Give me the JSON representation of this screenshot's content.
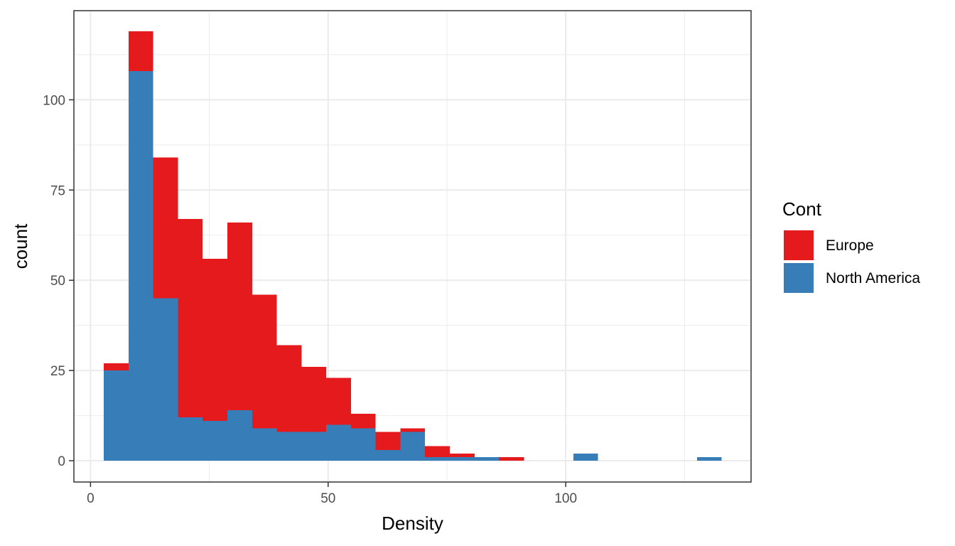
{
  "chart_data": {
    "type": "bar",
    "subtype": "stacked-histogram",
    "title": "",
    "xlabel": "Density",
    "ylabel": "count",
    "xlim": [
      -3.5,
      139
    ],
    "ylim": [
      -5.9,
      124.7
    ],
    "x_ticks": [
      0,
      50,
      100
    ],
    "y_ticks": [
      0,
      25,
      50,
      75,
      100
    ],
    "grid": true,
    "legend_position": "right",
    "legend": {
      "title": "Cont",
      "entries": [
        {
          "name": "Europe",
          "color": "#E41A1C"
        },
        {
          "name": "North America",
          "color": "#377EB8"
        }
      ]
    },
    "bins": [
      {
        "x0": 2.8,
        "x1": 8.0
      },
      {
        "x0": 8.0,
        "x1": 13.2
      },
      {
        "x0": 13.2,
        "x1": 18.4
      },
      {
        "x0": 18.4,
        "x1": 23.6
      },
      {
        "x0": 23.6,
        "x1": 28.8
      },
      {
        "x0": 28.8,
        "x1": 34.0
      },
      {
        "x0": 34.0,
        "x1": 39.2
      },
      {
        "x0": 39.2,
        "x1": 44.4
      },
      {
        "x0": 44.4,
        "x1": 49.6
      },
      {
        "x0": 49.6,
        "x1": 54.8
      },
      {
        "x0": 54.8,
        "x1": 60.0
      },
      {
        "x0": 60.0,
        "x1": 65.2
      },
      {
        "x0": 65.2,
        "x1": 70.4
      },
      {
        "x0": 70.4,
        "x1": 75.6
      },
      {
        "x0": 75.6,
        "x1": 80.8
      },
      {
        "x0": 80.8,
        "x1": 86.0
      },
      {
        "x0": 86.0,
        "x1": 91.2
      },
      {
        "x0": 91.2,
        "x1": 96.4
      },
      {
        "x0": 96.4,
        "x1": 101.6
      },
      {
        "x0": 101.6,
        "x1": 106.8
      },
      {
        "x0": 106.8,
        "x1": 112.0
      },
      {
        "x0": 112.0,
        "x1": 117.2
      },
      {
        "x0": 117.2,
        "x1": 122.4
      },
      {
        "x0": 122.4,
        "x1": 127.6
      },
      {
        "x0": 127.6,
        "x1": 132.8
      }
    ],
    "series": [
      {
        "name": "North America",
        "color": "#377EB8",
        "values": [
          25,
          108,
          45,
          12,
          11,
          14,
          9,
          8,
          8,
          10,
          9,
          3,
          8,
          1,
          1,
          1,
          0,
          0,
          0,
          2,
          0,
          0,
          0,
          0,
          1
        ]
      },
      {
        "name": "Europe",
        "color": "#E41A1C",
        "values": [
          2,
          11,
          39,
          55,
          45,
          52,
          37,
          24,
          18,
          13,
          4,
          5,
          1,
          3,
          1,
          0,
          1,
          0,
          0,
          0,
          0,
          0,
          0,
          0,
          0
        ]
      }
    ]
  }
}
